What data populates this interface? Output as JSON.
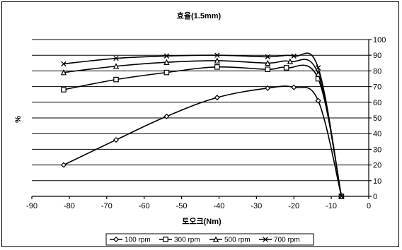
{
  "chart_data": {
    "type": "line",
    "title": "효율(1.5mm)",
    "xlabel": "토오크(Nm)",
    "ylabel": "%",
    "xlim": [
      -90,
      0
    ],
    "ylim": [
      0,
      100
    ],
    "xticks": [
      -90,
      -80,
      -70,
      -60,
      -50,
      -40,
      -30,
      -20,
      -10,
      0
    ],
    "yticks": [
      0,
      10,
      20,
      30,
      40,
      50,
      60,
      70,
      80,
      90,
      100
    ],
    "grid": "horizontal",
    "y_axis_position": "right",
    "legend_position": "bottom",
    "series": [
      {
        "name": "100 rpm",
        "marker": "diamond",
        "x": [
          -81.5,
          -67.5,
          -54,
          -40.5,
          -27,
          -20,
          -13.5,
          -7.3
        ],
        "y": [
          20,
          36,
          51,
          63,
          69,
          69.5,
          61,
          0
        ]
      },
      {
        "name": "300 rpm",
        "marker": "square",
        "x": [
          -81.5,
          -67.5,
          -54,
          -40.5,
          -27,
          -22,
          -13.5,
          -7.3
        ],
        "y": [
          68,
          74.5,
          79,
          82.5,
          81,
          82,
          75,
          0
        ]
      },
      {
        "name": "500 rpm",
        "marker": "triangle",
        "x": [
          -81.5,
          -67.5,
          -54,
          -40.5,
          -27,
          -21,
          -13.5,
          -7.3
        ],
        "y": [
          79,
          83,
          85.5,
          86.5,
          85,
          86,
          78,
          0
        ]
      },
      {
        "name": "700 rpm",
        "marker": "x",
        "x": [
          -81.5,
          -67.5,
          -54,
          -40.5,
          -27,
          -20,
          -13.5,
          -7.3
        ],
        "y": [
          84.5,
          88,
          89.5,
          90,
          89,
          89.5,
          82,
          0
        ]
      }
    ]
  }
}
